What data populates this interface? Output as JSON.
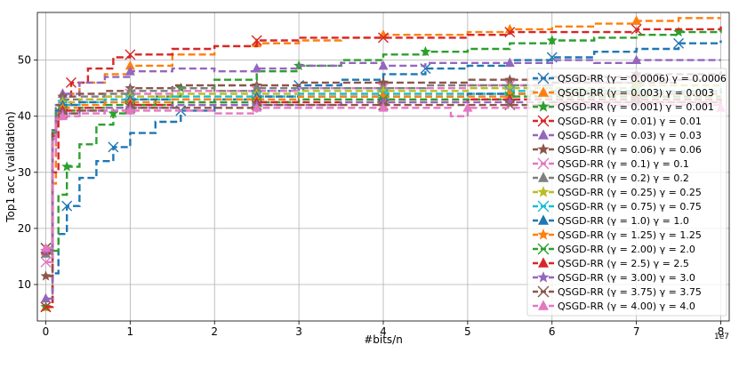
{
  "chart_data": {
    "type": "line",
    "xlabel": "#bits/n",
    "ylabel": "Top1 acc (validation)",
    "x_offset_label": "1e7",
    "xlim": [
      -0.1,
      8.1
    ],
    "ylim": [
      3.5,
      58.5
    ],
    "xticks": [
      0,
      1,
      2,
      3,
      4,
      5,
      6,
      7,
      8
    ],
    "yticks": [
      10,
      20,
      30,
      40,
      50
    ],
    "grid": true,
    "legend_position": "lower-right",
    "series": [
      {
        "name": "QSGD-RR ($\\gamma=0.0006$) $\\gamma=$ 0.0006",
        "label_text": "QSGD-RR (γ = 0.0006) γ =  0.0006",
        "color": "#1f77b4",
        "marker": "x",
        "x": [
          0.0,
          0.08,
          0.15,
          0.25,
          0.4,
          0.6,
          0.8,
          1.0,
          1.3,
          1.6,
          2.0,
          2.5,
          3.0,
          3.5,
          4.0,
          4.5,
          5.0,
          5.5,
          6.0,
          6.5,
          7.0,
          7.5,
          8.0
        ],
        "y": [
          6.0,
          12.0,
          19.0,
          24.0,
          29.0,
          32.0,
          34.5,
          37.0,
          39.0,
          41.0,
          43.0,
          44.5,
          45.5,
          46.5,
          47.5,
          48.5,
          49.0,
          50.0,
          50.5,
          51.5,
          52.0,
          53.0,
          53.5
        ]
      },
      {
        "name": "QSGD-RR ($\\gamma=0.003$) $\\gamma=$ 0.003",
        "label_text": "QSGD-RR (γ = 0.003) γ =  0.003",
        "color": "#ff7f0e",
        "marker": "^",
        "x": [
          0.0,
          0.08,
          0.12,
          0.2,
          0.4,
          0.7,
          1.0,
          1.5,
          2.0,
          2.5,
          3.0,
          3.5,
          4.0,
          4.5,
          5.0,
          5.5,
          6.0,
          6.5,
          7.0,
          7.5,
          8.0
        ],
        "y": [
          6.0,
          28.0,
          41.0,
          44.0,
          46.0,
          47.5,
          49.0,
          51.0,
          52.5,
          53.0,
          53.5,
          54.0,
          54.5,
          54.5,
          55.0,
          55.5,
          56.0,
          56.5,
          57.0,
          57.5,
          57.5
        ]
      },
      {
        "name": "QSGD-RR ($\\gamma=0.001$) $\\gamma=$ 0.001",
        "label_text": "QSGD-RR (γ = 0.001) γ =  0.001",
        "color": "#2ca02c",
        "marker": "*",
        "x": [
          0.0,
          0.08,
          0.15,
          0.25,
          0.4,
          0.6,
          0.8,
          1.0,
          1.3,
          1.6,
          2.0,
          2.5,
          3.0,
          3.5,
          4.0,
          4.5,
          5.0,
          5.5,
          6.0,
          6.5,
          7.0,
          7.5,
          8.0
        ],
        "y": [
          6.0,
          16.0,
          26.0,
          31.0,
          35.0,
          38.5,
          40.5,
          42.0,
          43.5,
          45.0,
          46.5,
          48.0,
          49.0,
          50.0,
          51.0,
          51.5,
          52.0,
          53.0,
          53.5,
          54.0,
          54.5,
          55.0,
          55.5
        ]
      },
      {
        "name": "QSGD-RR ($\\gamma=0.01$) $\\gamma=$ 0.01",
        "label_text": "QSGD-RR (γ = 0.01) γ =  0.01",
        "color": "#d62728",
        "marker": "x",
        "x": [
          0.0,
          0.08,
          0.15,
          0.3,
          0.5,
          0.8,
          1.0,
          1.5,
          2.0,
          2.5,
          3.0,
          3.5,
          4.0,
          4.5,
          5.0,
          5.5,
          6.0,
          6.5,
          7.0,
          7.5,
          8.0
        ],
        "y": [
          6.0,
          30.0,
          42.0,
          46.0,
          48.5,
          50.5,
          51.0,
          52.0,
          52.5,
          53.5,
          54.0,
          54.0,
          54.0,
          54.0,
          54.5,
          55.0,
          55.0,
          55.0,
          55.5,
          55.5,
          56.0
        ]
      },
      {
        "name": "QSGD-RR ($\\gamma=0.03$) $\\gamma=$ 0.03",
        "label_text": "QSGD-RR (γ = 0.03) γ =  0.03",
        "color": "#9467bd",
        "marker": "^",
        "x": [
          0.0,
          0.08,
          0.12,
          0.2,
          0.4,
          0.7,
          1.0,
          1.5,
          2.0,
          2.5,
          3.0,
          3.5,
          4.0,
          4.5,
          5.0,
          5.5,
          6.0,
          6.5,
          7.0,
          7.5,
          8.0
        ],
        "y": [
          7.5,
          37.5,
          42.0,
          44.0,
          46.0,
          47.0,
          48.0,
          48.5,
          48.0,
          48.5,
          49.0,
          49.5,
          49.0,
          49.5,
          49.5,
          49.5,
          50.0,
          49.5,
          50.0,
          50.0,
          50.0
        ]
      },
      {
        "name": "QSGD-RR ($\\gamma=0.06$) $\\gamma=$ 0.06",
        "label_text": "QSGD-RR (γ = 0.06) γ =  0.06",
        "color": "#8c564b",
        "marker": "*",
        "x": [
          0.0,
          0.08,
          0.12,
          0.2,
          0.4,
          0.7,
          1.0,
          1.5,
          2.0,
          2.5,
          3.0,
          3.5,
          4.0,
          4.5,
          5.0,
          5.5,
          6.0,
          6.5,
          7.0,
          7.5,
          8.0
        ],
        "y": [
          11.5,
          37.5,
          42.0,
          43.5,
          44.0,
          44.5,
          45.0,
          45.5,
          45.5,
          45.5,
          46.0,
          46.0,
          46.0,
          46.0,
          46.5,
          46.5,
          47.0,
          47.0,
          47.5,
          47.5,
          48.0
        ]
      },
      {
        "name": "QSGD-RR ($\\gamma=0.1$) $\\gamma=$ 0.1",
        "label_text": "QSGD-RR (γ = 0.1) γ =  0.1",
        "color": "#e377c2",
        "marker": "x",
        "x": [
          0.0,
          0.08,
          0.12,
          0.2,
          0.4,
          0.7,
          1.0,
          1.5,
          2.0,
          2.5,
          3.0,
          3.5,
          4.0,
          4.5,
          5.0,
          5.5,
          6.0,
          6.5,
          7.0,
          7.5,
          8.0
        ],
        "y": [
          14.0,
          33.0,
          40.5,
          42.0,
          43.0,
          43.5,
          44.0,
          44.5,
          44.5,
          44.5,
          45.0,
          45.0,
          45.0,
          45.0,
          45.5,
          45.5,
          46.0,
          46.0,
          46.5,
          46.5,
          46.5
        ]
      },
      {
        "name": "QSGD-RR ($\\gamma=0.2$) $\\gamma=$ 0.2",
        "label_text": "QSGD-RR (γ = 0.2) γ =  0.2",
        "color": "#7f7f7f",
        "marker": "^",
        "x": [
          0.0,
          0.08,
          0.12,
          0.2,
          0.4,
          0.7,
          1.0,
          1.5,
          2.0,
          2.5,
          3.0,
          3.5,
          4.0,
          4.5,
          5.0,
          5.5,
          6.0,
          6.5,
          7.0,
          7.5,
          8.0
        ],
        "y": [
          15.5,
          36.0,
          41.5,
          43.0,
          43.5,
          44.0,
          44.5,
          45.0,
          44.5,
          45.0,
          45.0,
          45.0,
          45.0,
          45.5,
          45.5,
          45.5,
          46.0,
          46.0,
          46.0,
          46.5,
          46.5
        ]
      },
      {
        "name": "QSGD-RR ($\\gamma=0.25$) $\\gamma=$ 0.25",
        "label_text": "QSGD-RR (γ = 0.25) γ =  0.25",
        "color": "#bcbd22",
        "marker": "*",
        "x": [
          0.0,
          0.08,
          0.12,
          0.2,
          0.4,
          0.7,
          1.0,
          1.5,
          2.0,
          2.5,
          3.0,
          3.5,
          4.0,
          4.5,
          5.0,
          5.5,
          6.0,
          6.5,
          7.0,
          7.5,
          8.0
        ],
        "y": [
          16.0,
          37.0,
          41.0,
          42.5,
          43.0,
          43.5,
          43.5,
          44.0,
          44.0,
          44.0,
          44.5,
          44.5,
          44.5,
          44.5,
          45.0,
          45.0,
          45.0,
          45.0,
          45.5,
          45.5,
          45.5
        ]
      },
      {
        "name": "QSGD-RR ($\\gamma=0.75$) $\\gamma=$ 0.75",
        "label_text": "QSGD-RR (γ = 0.75) γ =  0.75",
        "color": "#17becf",
        "marker": "x",
        "x": [
          0.0,
          0.08,
          0.12,
          0.2,
          0.4,
          0.7,
          1.0,
          1.5,
          2.0,
          2.5,
          3.0,
          3.5,
          4.0,
          4.5,
          5.0,
          5.5,
          6.0,
          6.5,
          7.0,
          7.5,
          8.0
        ],
        "y": [
          16.5,
          37.5,
          41.0,
          42.0,
          42.5,
          43.0,
          43.0,
          43.5,
          43.5,
          43.5,
          44.0,
          44.0,
          44.0,
          44.0,
          44.0,
          44.5,
          44.5,
          44.5,
          44.5,
          44.5,
          45.0
        ]
      },
      {
        "name": "QSGD-RR ($\\gamma=1.0$) $\\gamma=$ 1.0",
        "label_text": "QSGD-RR (γ = 1.0) γ =  1.0",
        "color": "#1f77b4",
        "marker": "^",
        "x": [
          0.0,
          0.08,
          0.12,
          0.2,
          0.4,
          0.7,
          1.0,
          1.5,
          2.0,
          2.5,
          3.0,
          3.5,
          4.0,
          4.5,
          5.0,
          5.5,
          6.0,
          6.5,
          7.0,
          7.5,
          8.0
        ],
        "y": [
          16.0,
          37.0,
          41.0,
          42.0,
          42.5,
          42.5,
          43.0,
          43.0,
          43.0,
          43.5,
          43.5,
          43.5,
          43.5,
          43.5,
          44.0,
          44.0,
          44.0,
          44.0,
          44.0,
          44.0,
          44.5
        ]
      },
      {
        "name": "QSGD-RR ($\\gamma=1.25$) $\\gamma=$ 1.25",
        "label_text": "QSGD-RR (γ = 1.25) γ =  1.25",
        "color": "#ff7f0e",
        "marker": "*",
        "x": [
          0.0,
          0.08,
          0.12,
          0.2,
          0.4,
          0.7,
          1.0,
          1.5,
          2.0,
          2.5,
          3.0,
          3.5,
          4.0,
          4.5,
          5.0,
          5.5,
          6.0,
          6.5,
          7.0,
          7.5,
          8.0
        ],
        "y": [
          16.0,
          37.0,
          40.5,
          41.5,
          42.0,
          42.5,
          42.5,
          43.0,
          43.0,
          43.0,
          43.5,
          43.5,
          43.5,
          43.5,
          43.5,
          44.0,
          44.0,
          44.0,
          44.0,
          44.0,
          44.0
        ]
      },
      {
        "name": "QSGD-RR ($\\gamma=2.00$) $\\gamma=$ 2.0",
        "label_text": "QSGD-RR (γ = 2.00) γ =  2.0",
        "color": "#2ca02c",
        "marker": "x",
        "x": [
          0.0,
          0.08,
          0.12,
          0.2,
          0.4,
          0.7,
          1.0,
          1.5,
          2.0,
          2.5,
          3.0,
          3.5,
          4.0,
          4.5,
          5.0,
          5.5,
          6.0,
          6.5,
          7.0,
          7.5,
          8.0
        ],
        "y": [
          16.5,
          37.0,
          40.5,
          41.0,
          41.5,
          42.0,
          42.0,
          42.5,
          42.5,
          42.5,
          43.0,
          43.0,
          43.0,
          43.0,
          43.0,
          43.5,
          43.5,
          43.5,
          43.5,
          43.5,
          43.5
        ]
      },
      {
        "name": "QSGD-RR ($\\gamma=2.5$) $\\gamma=$ 2.5",
        "label_text": "QSGD-RR (γ = 2.5) γ =  2.5",
        "color": "#d62728",
        "marker": "^",
        "x": [
          0.0,
          0.08,
          0.12,
          0.2,
          0.4,
          0.7,
          1.0,
          1.5,
          2.0,
          2.5,
          3.0,
          3.5,
          4.0,
          4.5,
          5.0,
          5.5,
          6.0,
          6.5,
          7.0,
          7.5,
          8.0
        ],
        "y": [
          16.0,
          37.0,
          40.0,
          41.0,
          41.5,
          41.5,
          42.0,
          42.0,
          42.0,
          42.5,
          42.5,
          42.5,
          42.5,
          42.5,
          43.0,
          43.0,
          43.0,
          43.0,
          43.0,
          43.0,
          42.0
        ]
      },
      {
        "name": "QSGD-RR ($\\gamma=3.00$) $\\gamma=$ 3.0",
        "label_text": "QSGD-RR (γ = 3.00) γ =  3.0",
        "color": "#9467bd",
        "marker": "*",
        "x": [
          0.0,
          0.08,
          0.12,
          0.2,
          0.4,
          0.7,
          1.0,
          1.5,
          2.0,
          2.5,
          3.0,
          3.5,
          4.0,
          4.5,
          5.0,
          5.5,
          6.0,
          6.5,
          7.0,
          7.5,
          8.0
        ],
        "y": [
          16.0,
          36.5,
          40.0,
          40.5,
          41.0,
          41.5,
          41.5,
          42.0,
          42.0,
          42.0,
          42.0,
          42.5,
          42.5,
          42.5,
          42.5,
          42.5,
          42.5,
          42.5,
          42.5,
          42.5,
          42.0
        ]
      },
      {
        "name": "QSGD-RR ($\\gamma=3.75$) $\\gamma=$ 3.75",
        "label_text": "QSGD-RR (γ = 3.75) γ =  3.75",
        "color": "#8c564b",
        "marker": "x",
        "x": [
          0.0,
          0.08,
          0.12,
          0.2,
          0.4,
          0.7,
          1.0,
          1.5,
          2.0,
          2.5,
          3.0,
          3.5,
          4.0,
          4.5,
          5.0,
          5.5,
          6.0,
          6.5,
          7.0,
          7.5,
          8.0
        ],
        "y": [
          16.5,
          36.5,
          39.5,
          40.5,
          41.0,
          41.0,
          41.5,
          41.5,
          41.5,
          42.0,
          42.0,
          42.0,
          42.0,
          42.0,
          42.0,
          42.0,
          42.5,
          42.5,
          42.5,
          42.5,
          41.5
        ]
      },
      {
        "name": "QSGD-RR ($\\gamma=4.00$) $\\gamma=$ 4.0",
        "label_text": "QSGD-RR (γ = 4.00) γ =  4.0",
        "color": "#e377c2",
        "marker": "^",
        "x": [
          0.0,
          0.08,
          0.12,
          0.2,
          0.4,
          0.7,
          1.0,
          1.5,
          2.0,
          2.5,
          3.0,
          3.5,
          4.0,
          4.5,
          4.8,
          5.0,
          5.5,
          6.0,
          6.5,
          7.0,
          7.5,
          8.0
        ],
        "y": [
          16.5,
          36.0,
          39.5,
          40.0,
          40.5,
          41.0,
          41.0,
          41.0,
          40.5,
          41.5,
          41.5,
          41.5,
          41.5,
          41.5,
          40.0,
          41.5,
          41.5,
          42.0,
          42.0,
          42.0,
          42.0,
          41.5
        ]
      }
    ]
  }
}
